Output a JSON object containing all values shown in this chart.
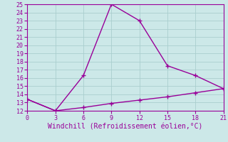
{
  "xlabel": "Windchill (Refroidissement éolien,°C)",
  "x_ticks": [
    0,
    3,
    6,
    9,
    12,
    15,
    18,
    21
  ],
  "y_ticks": [
    12,
    13,
    14,
    15,
    16,
    17,
    18,
    19,
    20,
    21,
    22,
    23,
    24,
    25
  ],
  "xlim": [
    0,
    21
  ],
  "ylim": [
    12,
    25
  ],
  "line1_x": [
    0,
    3,
    6,
    9,
    12,
    15,
    18,
    21
  ],
  "line1_y": [
    13.4,
    12.0,
    16.3,
    25.0,
    23.0,
    17.5,
    16.3,
    14.7
  ],
  "line2_x": [
    0,
    3,
    6,
    9,
    12,
    15,
    18,
    21
  ],
  "line2_y": [
    13.4,
    12.0,
    12.4,
    12.9,
    13.3,
    13.7,
    14.2,
    14.7
  ],
  "line_color": "#990099",
  "bg_color": "#cce8e8",
  "grid_color": "#aacece",
  "tick_label_color": "#990099",
  "xlabel_color": "#990099",
  "marker": "+",
  "linewidth": 1.0,
  "markersize": 4,
  "fontsize_ticks": 6,
  "fontsize_xlabel": 7
}
